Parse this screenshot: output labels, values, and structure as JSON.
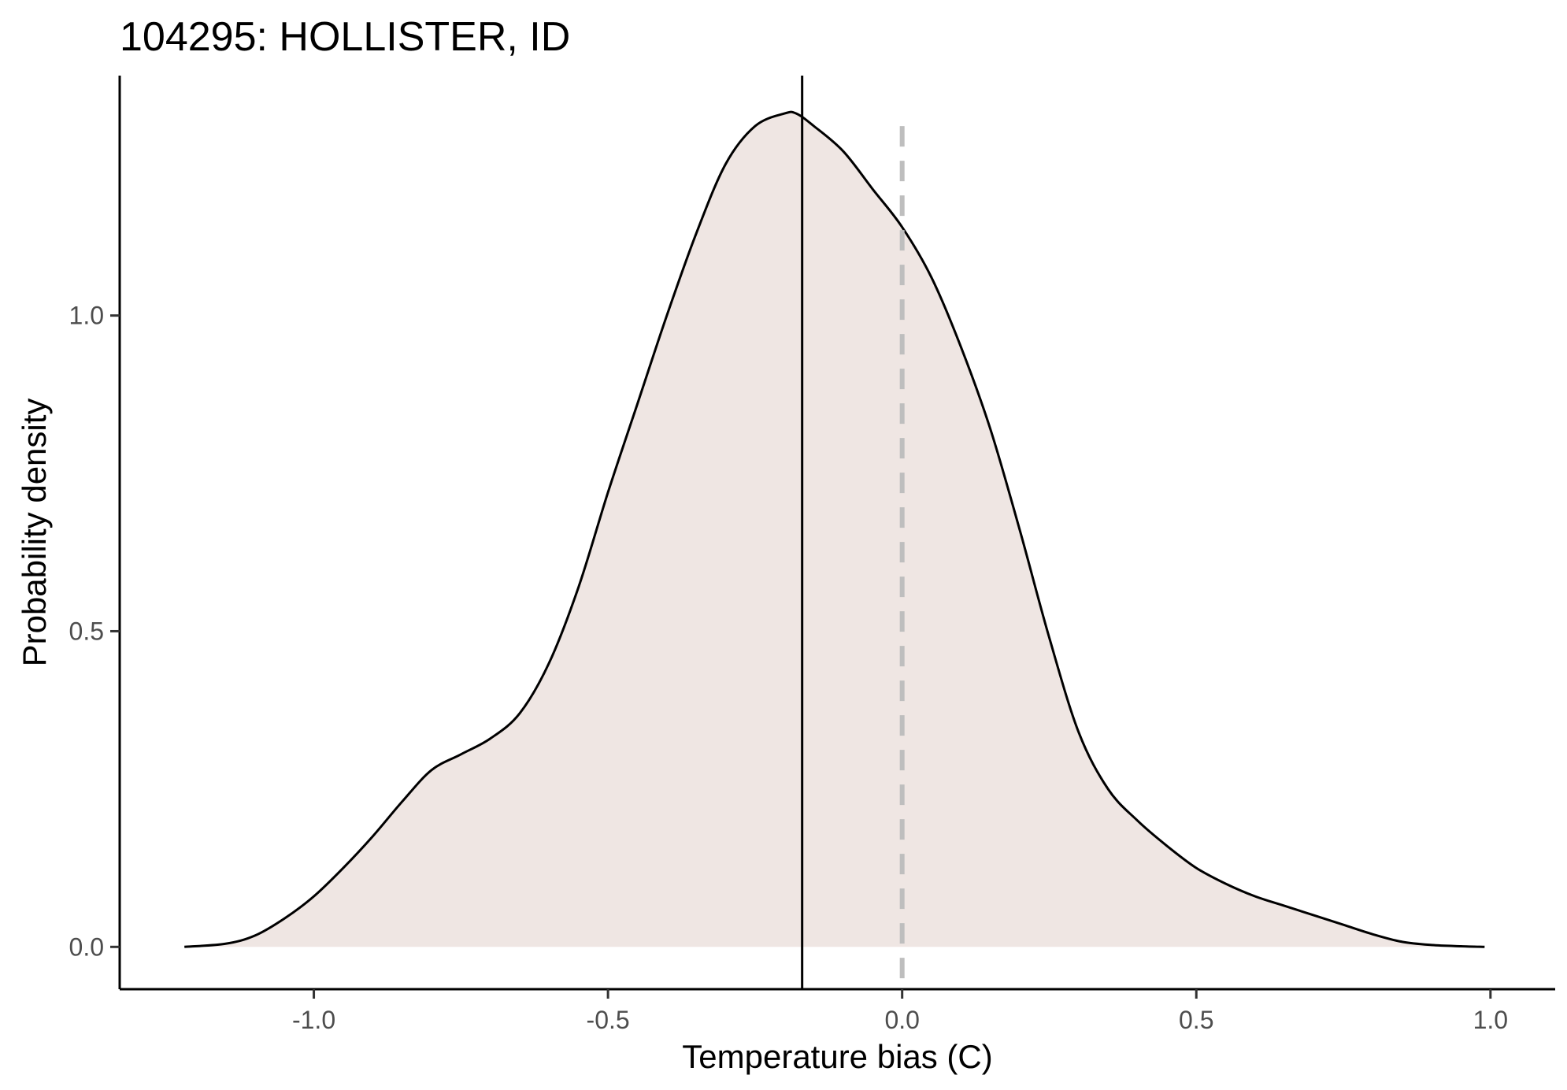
{
  "chart_data": {
    "type": "area",
    "title": "104295: HOLLISTER, ID",
    "xlabel": "Temperature bias (C)",
    "ylabel": "Probability density",
    "xlim": [
      -1.33,
      1.11
    ],
    "ylim": [
      -0.067,
      1.38
    ],
    "xticks": [
      -1.0,
      -0.5,
      0.0,
      0.5,
      1.0
    ],
    "xtick_labels": [
      "-1.0",
      "-0.5",
      "0.0",
      "0.5",
      "1.0"
    ],
    "yticks": [
      0.0,
      0.5,
      1.0
    ],
    "ytick_labels": [
      "0.0",
      "0.5",
      "1.0"
    ],
    "grid": false,
    "fill_color": "#efe6e3",
    "line_color": "#000000",
    "reference_lines": [
      {
        "x": -0.17,
        "style": "solid",
        "color": "#000000"
      },
      {
        "x": 0.0,
        "style": "dashed",
        "color": "#bebebe"
      }
    ],
    "series": [
      {
        "x": [
          -1.22,
          -1.15,
          -1.1,
          -1.05,
          -1.0,
          -0.95,
          -0.9,
          -0.85,
          -0.8,
          -0.75,
          -0.7,
          -0.65,
          -0.6,
          -0.55,
          -0.5,
          -0.45,
          -0.4,
          -0.35,
          -0.3,
          -0.25,
          -0.2,
          -0.18,
          -0.15,
          -0.1,
          -0.05,
          0.0,
          0.05,
          0.1,
          0.15,
          0.2,
          0.25,
          0.3,
          0.35,
          0.4,
          0.45,
          0.5,
          0.55,
          0.6,
          0.65,
          0.7,
          0.75,
          0.8,
          0.85,
          0.9,
          0.95,
          0.99
        ],
        "y": [
          0.0,
          0.005,
          0.018,
          0.045,
          0.08,
          0.125,
          0.175,
          0.23,
          0.28,
          0.305,
          0.33,
          0.37,
          0.45,
          0.57,
          0.72,
          0.86,
          1.0,
          1.13,
          1.24,
          1.3,
          1.32,
          1.32,
          1.3,
          1.26,
          1.2,
          1.14,
          1.06,
          0.95,
          0.82,
          0.66,
          0.49,
          0.34,
          0.25,
          0.2,
          0.16,
          0.125,
          0.1,
          0.08,
          0.065,
          0.05,
          0.035,
          0.02,
          0.008,
          0.003,
          0.001,
          0.0
        ]
      }
    ]
  }
}
